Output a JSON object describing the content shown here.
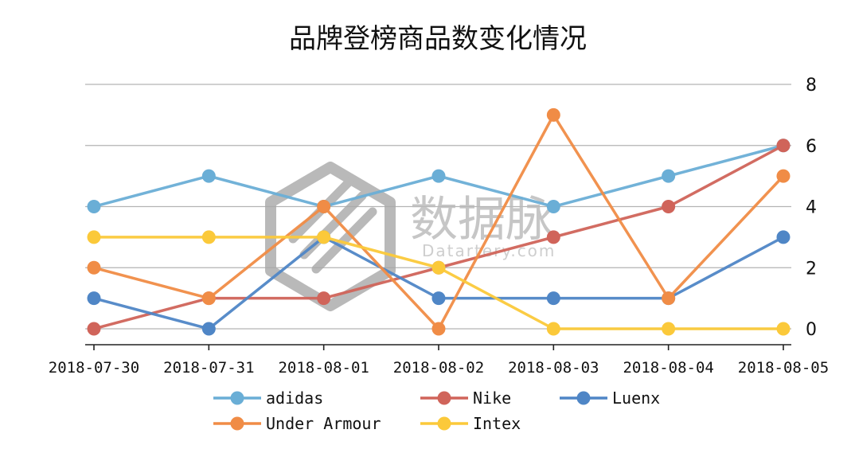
{
  "chart_data": {
    "type": "line",
    "title": "品牌登榜商品数变化情况",
    "categories": [
      "2018-07-30",
      "2018-07-31",
      "2018-08-01",
      "2018-08-02",
      "2018-08-03",
      "2018-08-04",
      "2018-08-05"
    ],
    "ylim": [
      0,
      8
    ],
    "yticks": [
      0,
      2,
      4,
      6,
      8
    ],
    "yaxis_side": "right",
    "grid": true,
    "legend_position": "bottom",
    "series": [
      {
        "name": "adidas",
        "color": "#6aaed6",
        "values": [
          4,
          5,
          4,
          5,
          4,
          5,
          6
        ]
      },
      {
        "name": "Nike",
        "color": "#d0645a",
        "values": [
          0,
          1,
          1,
          2,
          3,
          4,
          6
        ]
      },
      {
        "name": "Luenx",
        "color": "#4f86c6",
        "values": [
          1,
          0,
          3,
          1,
          1,
          1,
          3
        ]
      },
      {
        "name": "Under Armour",
        "color": "#f08c46",
        "values": [
          2,
          1,
          4,
          0,
          7,
          1,
          5
        ]
      },
      {
        "name": "Intex",
        "color": "#fbc93a",
        "values": [
          3,
          3,
          3,
          2,
          0,
          0,
          0
        ]
      }
    ]
  },
  "watermark": {
    "text": "数据脉",
    "subtext": "Datartery.com"
  }
}
